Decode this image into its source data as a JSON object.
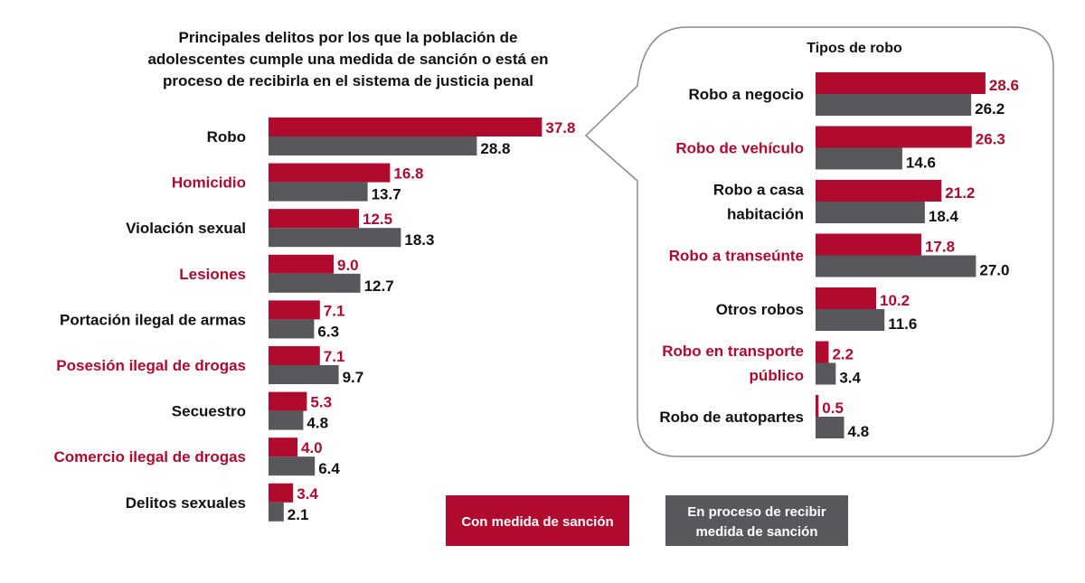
{
  "colors": {
    "sanction": "#b00a2e",
    "process": "#57575c",
    "label_dark": "#111111",
    "label_accent": "#b00a2e"
  },
  "chart_data": [
    {
      "type": "bar",
      "orientation": "horizontal",
      "title": [
        "Principales delitos por los que la población de",
        "adolescentes cumple una medida de sanción o está en",
        "proceso de recibir­la en el sistema de justicia penal"
      ],
      "categories": [
        "Robo",
        "Homicidio",
        "Violación sexual",
        "Lesiones",
        "Portación ilegal de armas",
        "Posesión ilegal de drogas",
        "Secuestro",
        "Comercio ilegal de drogas",
        "Delitos sexuales"
      ],
      "category_accent": [
        false,
        true,
        false,
        true,
        false,
        true,
        false,
        true,
        false
      ],
      "series": [
        {
          "name": "Con medida de sanción",
          "values": [
            37.8,
            16.8,
            12.5,
            9.0,
            7.1,
            7.1,
            5.3,
            4.0,
            3.4
          ]
        },
        {
          "name": "En proceso de recibir medida de sanción",
          "values": [
            28.8,
            13.7,
            18.3,
            12.7,
            6.3,
            9.7,
            4.8,
            6.4,
            2.1
          ]
        }
      ],
      "grid": false
    },
    {
      "type": "bar",
      "orientation": "horizontal",
      "title": [
        "Tipos de robo"
      ],
      "categories": [
        [
          "Robo a negocio"
        ],
        [
          "Robo de vehículo"
        ],
        [
          "Robo a casa",
          "habitación"
        ],
        [
          "Robo a transeúnte"
        ],
        [
          "Otros robos"
        ],
        [
          "Robo en transporte",
          "público"
        ],
        [
          "Robo de autopartes"
        ]
      ],
      "category_accent": [
        false,
        true,
        false,
        true,
        false,
        true,
        false
      ],
      "series": [
        {
          "name": "Con medida de sanción",
          "values": [
            28.6,
            26.3,
            21.2,
            17.8,
            10.2,
            2.2,
            0.5
          ]
        },
        {
          "name": "En proceso de recibir medida de sanción",
          "values": [
            26.2,
            14.6,
            18.4,
            27.0,
            11.6,
            3.4,
            4.8
          ]
        }
      ],
      "grid": false
    }
  ],
  "legend": {
    "placement": "bottom",
    "items": [
      {
        "lines": [
          "Con medida de sanción"
        ]
      },
      {
        "lines": [
          "En proceso de recibir",
          "medida de sanción"
        ]
      }
    ]
  }
}
